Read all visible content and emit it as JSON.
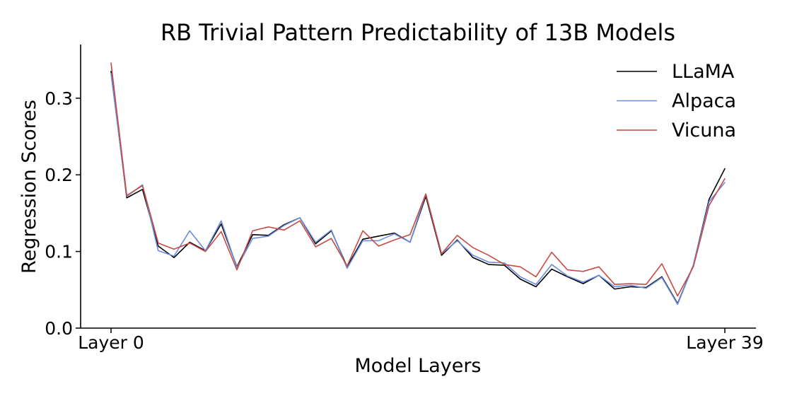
{
  "chart_data": {
    "type": "line",
    "title": "RB Trivial Pattern Predictability of 13B Models",
    "xlabel": "Model Layers",
    "ylabel": "Regression Scores",
    "xlim": [
      0,
      39
    ],
    "ylim": [
      0,
      0.37
    ],
    "x_ticks": [
      {
        "value": 0,
        "label": "Layer 0"
      },
      {
        "value": 39,
        "label": "Layer 39"
      }
    ],
    "y_ticks": [
      {
        "value": 0.0,
        "label": "0.0"
      },
      {
        "value": 0.1,
        "label": "0.1"
      },
      {
        "value": 0.2,
        "label": "0.2"
      },
      {
        "value": 0.3,
        "label": "0.3"
      }
    ],
    "grid": false,
    "legend_position": "top-right",
    "x": [
      0,
      1,
      2,
      3,
      4,
      5,
      6,
      7,
      8,
      9,
      10,
      11,
      12,
      13,
      14,
      15,
      16,
      17,
      18,
      19,
      20,
      21,
      22,
      23,
      24,
      25,
      26,
      27,
      28,
      29,
      30,
      31,
      32,
      33,
      34,
      35,
      36,
      37,
      38,
      39
    ],
    "series": [
      {
        "name": "LLaMA",
        "color": "#000000",
        "values": [
          0.335,
          0.17,
          0.181,
          0.107,
          0.092,
          0.112,
          0.101,
          0.136,
          0.08,
          0.122,
          0.121,
          0.135,
          0.144,
          0.11,
          0.127,
          0.08,
          0.116,
          0.12,
          0.124,
          0.112,
          0.172,
          0.095,
          0.115,
          0.092,
          0.083,
          0.082,
          0.064,
          0.054,
          0.077,
          0.067,
          0.058,
          0.069,
          0.051,
          0.054,
          0.053,
          0.067,
          0.032,
          0.082,
          0.168,
          0.208
        ]
      },
      {
        "name": "Alpaca",
        "color": "#6a8de0",
        "values": [
          0.332,
          0.172,
          0.187,
          0.101,
          0.094,
          0.127,
          0.101,
          0.14,
          0.079,
          0.117,
          0.12,
          0.134,
          0.144,
          0.112,
          0.128,
          0.078,
          0.114,
          0.114,
          0.123,
          0.112,
          0.175,
          0.097,
          0.114,
          0.095,
          0.086,
          0.085,
          0.067,
          0.057,
          0.083,
          0.068,
          0.06,
          0.069,
          0.054,
          0.056,
          0.052,
          0.066,
          0.031,
          0.082,
          0.165,
          0.19
        ]
      },
      {
        "name": "Vicuna",
        "color": "#c84a46",
        "values": [
          0.346,
          0.173,
          0.186,
          0.111,
          0.103,
          0.111,
          0.1,
          0.126,
          0.076,
          0.127,
          0.132,
          0.128,
          0.14,
          0.106,
          0.117,
          0.081,
          0.127,
          0.107,
          0.115,
          0.122,
          0.175,
          0.097,
          0.121,
          0.105,
          0.095,
          0.083,
          0.08,
          0.067,
          0.099,
          0.076,
          0.074,
          0.08,
          0.057,
          0.058,
          0.057,
          0.084,
          0.042,
          0.08,
          0.16,
          0.195
        ]
      }
    ]
  }
}
